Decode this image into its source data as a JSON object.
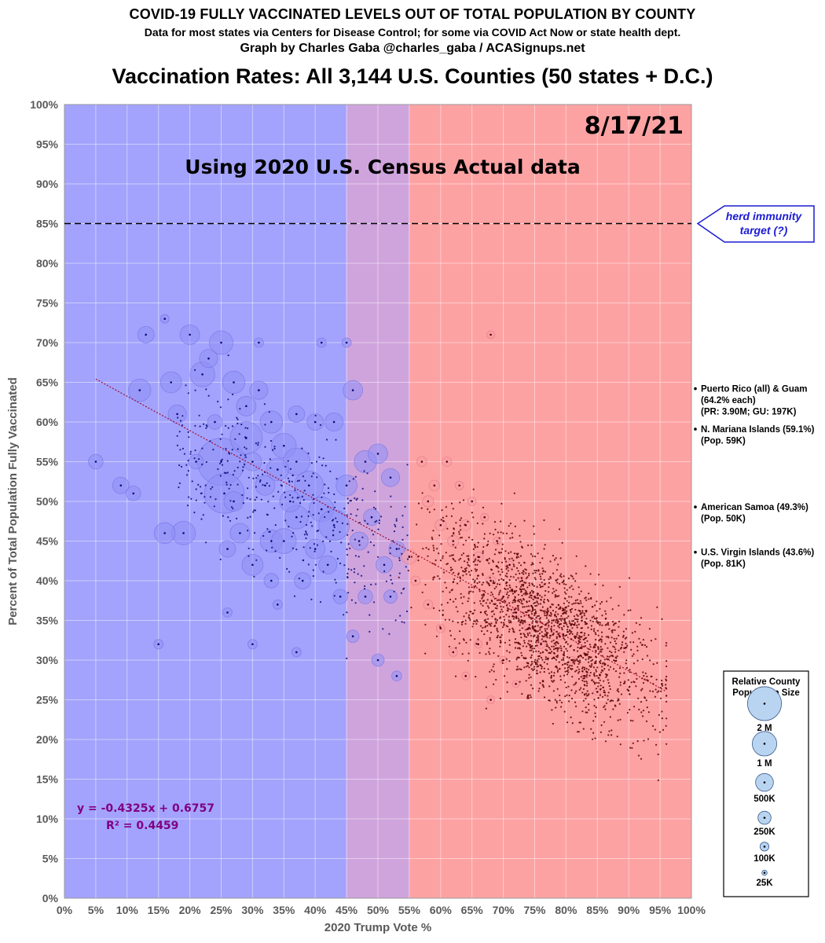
{
  "header": {
    "title": "COVID-19 FULLY VACCINATED LEVELS OUT OF TOTAL POPULATION BY COUNTY",
    "source": "Data for most states via Centers for Disease Control; for some via COVID Act Now or state health dept.",
    "credit": "Graph by Charles Gaba @charles_gaba / ACASignups.net",
    "subtitle": "Vaccination Rates: All 3,144 U.S. Counties (50 states + D.C.)"
  },
  "annotations": {
    "date": "8/17/21",
    "census_note": "Using 2020 U.S. Census Actual data",
    "herd_line1": "herd immunity",
    "herd_line2": "target (?)",
    "equation": "y = -0.4325x + 0.6757",
    "r_squared": "R² = 0.4459"
  },
  "territories": [
    {
      "lines": [
        "Puerto Rico (all) & Guam",
        "(64.2% each)",
        "(PR: 3.90M; GU: 197K)"
      ],
      "value": 64.2
    },
    {
      "lines": [
        "N. Mariana Islands (59.1%)",
        "(Pop. 59K)"
      ],
      "value": 59.1
    },
    {
      "lines": [
        "American Samoa (49.3%)",
        "(Pop. 50K)"
      ],
      "value": 49.3
    },
    {
      "lines": [
        "U.S. Virgin Islands (43.6%)",
        "(Pop. 81K)"
      ],
      "value": 43.6
    }
  ],
  "size_legend": {
    "title_line1": "Relative County",
    "title_line2": "Population Size",
    "items": [
      {
        "label": "2 M",
        "pop": 2000000
      },
      {
        "label": "1 M",
        "pop": 1000000
      },
      {
        "label": "500K",
        "pop": 500000
      },
      {
        "label": "250K",
        "pop": 250000
      },
      {
        "label": "100K",
        "pop": 100000
      },
      {
        "label": "25K",
        "pop": 25000
      }
    ]
  },
  "colors": {
    "blue_zone": "#a3a3fd",
    "purple_zone": "#cfa4dd",
    "red_zone": "#fda2a3",
    "blue_dot": "#0b0b7a",
    "red_dot": "#5a0000",
    "bubble_blue": "#8f8ff5",
    "bubble_red": "#f59ca6",
    "trend": "#a01030",
    "equation_text": "#800080",
    "herd_text": "#1b1bd4"
  },
  "chart_data": {
    "type": "scatter",
    "xlabel": "2020 Trump Vote %",
    "ylabel": "Percent of Total Population Fully Vaccinated",
    "xlim": [
      0,
      100
    ],
    "ylim": [
      0,
      100
    ],
    "x_ticks": [
      "0%",
      "5%",
      "10%",
      "15%",
      "20%",
      "25%",
      "30%",
      "35%",
      "40%",
      "45%",
      "50%",
      "55%",
      "60%",
      "65%",
      "70%",
      "75%",
      "80%",
      "85%",
      "90%",
      "95%",
      "100%"
    ],
    "y_ticks": [
      "0%",
      "5%",
      "10%",
      "15%",
      "20%",
      "25%",
      "30%",
      "35%",
      "40%",
      "45%",
      "50%",
      "55%",
      "60%",
      "65%",
      "70%",
      "75%",
      "80%",
      "85%",
      "90%",
      "95%",
      "100%"
    ],
    "grid": true,
    "zones": [
      {
        "from": 0,
        "to": 45,
        "color": "blue"
      },
      {
        "from": 45,
        "to": 55,
        "color": "purple"
      },
      {
        "from": 55,
        "to": 100,
        "color": "red"
      }
    ],
    "reference_line": {
      "y": 85,
      "style": "dashed",
      "label": "herd immunity target (?)"
    },
    "trendline": {
      "slope": -0.4325,
      "intercept": 0.6757,
      "x_range": [
        5,
        96
      ]
    },
    "series": [
      {
        "type": "bubbles",
        "points": [
          [
            25,
            55,
            2000000
          ],
          [
            25.5,
            51,
            1400000
          ],
          [
            29,
            58,
            900000
          ],
          [
            22,
            66,
            500000
          ],
          [
            20,
            71,
            300000
          ],
          [
            19,
            46,
            450000
          ],
          [
            16,
            46,
            350000
          ],
          [
            12,
            64,
            400000
          ],
          [
            13,
            71,
            200000
          ],
          [
            5,
            55,
            150000
          ],
          [
            9,
            52,
            200000
          ],
          [
            11,
            51,
            150000
          ],
          [
            18,
            61,
            250000
          ],
          [
            17,
            65,
            350000
          ],
          [
            23,
            68,
            250000
          ],
          [
            25,
            70,
            450000
          ],
          [
            27,
            65,
            400000
          ],
          [
            29,
            62,
            300000
          ],
          [
            31,
            64,
            250000
          ],
          [
            33,
            60,
            400000
          ],
          [
            35,
            57,
            500000
          ],
          [
            37,
            55,
            600000
          ],
          [
            39,
            52,
            700000
          ],
          [
            41,
            49,
            500000
          ],
          [
            43,
            47,
            800000
          ],
          [
            46,
            64,
            300000
          ],
          [
            48,
            55,
            400000
          ],
          [
            45,
            52,
            350000
          ],
          [
            50,
            56,
            300000
          ],
          [
            52,
            53,
            250000
          ],
          [
            30,
            42,
            350000
          ],
          [
            28,
            46,
            300000
          ],
          [
            33,
            45,
            400000
          ],
          [
            35,
            45,
            500000
          ],
          [
            37,
            48,
            450000
          ],
          [
            40,
            44,
            300000
          ],
          [
            42,
            42,
            250000
          ],
          [
            38,
            40,
            200000
          ],
          [
            33,
            40,
            150000
          ],
          [
            43,
            60,
            250000
          ],
          [
            40,
            60,
            200000
          ],
          [
            37,
            61,
            200000
          ],
          [
            32,
            52,
            300000
          ],
          [
            34,
            54,
            400000
          ],
          [
            36,
            50,
            350000
          ],
          [
            30,
            55,
            250000
          ],
          [
            27,
            50,
            300000
          ],
          [
            24,
            60,
            150000
          ],
          [
            21,
            55,
            150000
          ],
          [
            26,
            44,
            200000
          ],
          [
            47,
            45,
            250000
          ],
          [
            49,
            48,
            200000
          ],
          [
            51,
            42,
            200000
          ],
          [
            53,
            44,
            180000
          ],
          [
            55,
            43,
            150000
          ],
          [
            44,
            38,
            150000
          ],
          [
            48,
            38,
            150000
          ],
          [
            52,
            38,
            120000
          ],
          [
            46,
            33,
            100000
          ],
          [
            50,
            30,
            100000
          ],
          [
            45,
            70,
            50000
          ],
          [
            41,
            70,
            50000
          ],
          [
            31,
            70,
            50000
          ],
          [
            16,
            73,
            40000
          ],
          [
            15,
            32,
            50000
          ],
          [
            30,
            32,
            50000
          ],
          [
            37,
            31,
            50000
          ],
          [
            26,
            36,
            50000
          ],
          [
            34,
            37,
            50000
          ],
          [
            53,
            28,
            60000
          ],
          [
            58,
            50,
            80000
          ],
          [
            60,
            47,
            80000
          ],
          [
            62,
            45,
            80000
          ],
          [
            64,
            47,
            70000
          ],
          [
            66,
            43,
            60000
          ],
          [
            68,
            40,
            60000
          ],
          [
            70,
            38,
            50000
          ],
          [
            72,
            36,
            50000
          ],
          [
            74,
            34,
            40000
          ],
          [
            76,
            32,
            40000
          ],
          [
            57,
            55,
            60000
          ],
          [
            59,
            52,
            70000
          ],
          [
            61,
            55,
            50000
          ],
          [
            63,
            52,
            40000
          ],
          [
            65,
            50,
            40000
          ],
          [
            67,
            48,
            30000
          ],
          [
            69,
            45,
            30000
          ],
          [
            71,
            42,
            30000
          ],
          [
            73,
            40,
            30000
          ],
          [
            75,
            38,
            25000
          ],
          [
            56,
            40,
            50000
          ],
          [
            58,
            37,
            50000
          ],
          [
            60,
            34,
            40000
          ],
          [
            62,
            31,
            40000
          ],
          [
            64,
            28,
            30000
          ],
          [
            66,
            32,
            30000
          ],
          [
            68,
            25,
            30000
          ],
          [
            70,
            30,
            25000
          ],
          [
            72,
            27,
            25000
          ],
          [
            68,
            71,
            30000
          ],
          [
            77,
            36,
            25000
          ],
          [
            79,
            33,
            25000
          ],
          [
            81,
            30,
            25000
          ],
          [
            83,
            28,
            25000
          ],
          [
            85,
            26,
            25000
          ]
        ]
      }
    ]
  }
}
